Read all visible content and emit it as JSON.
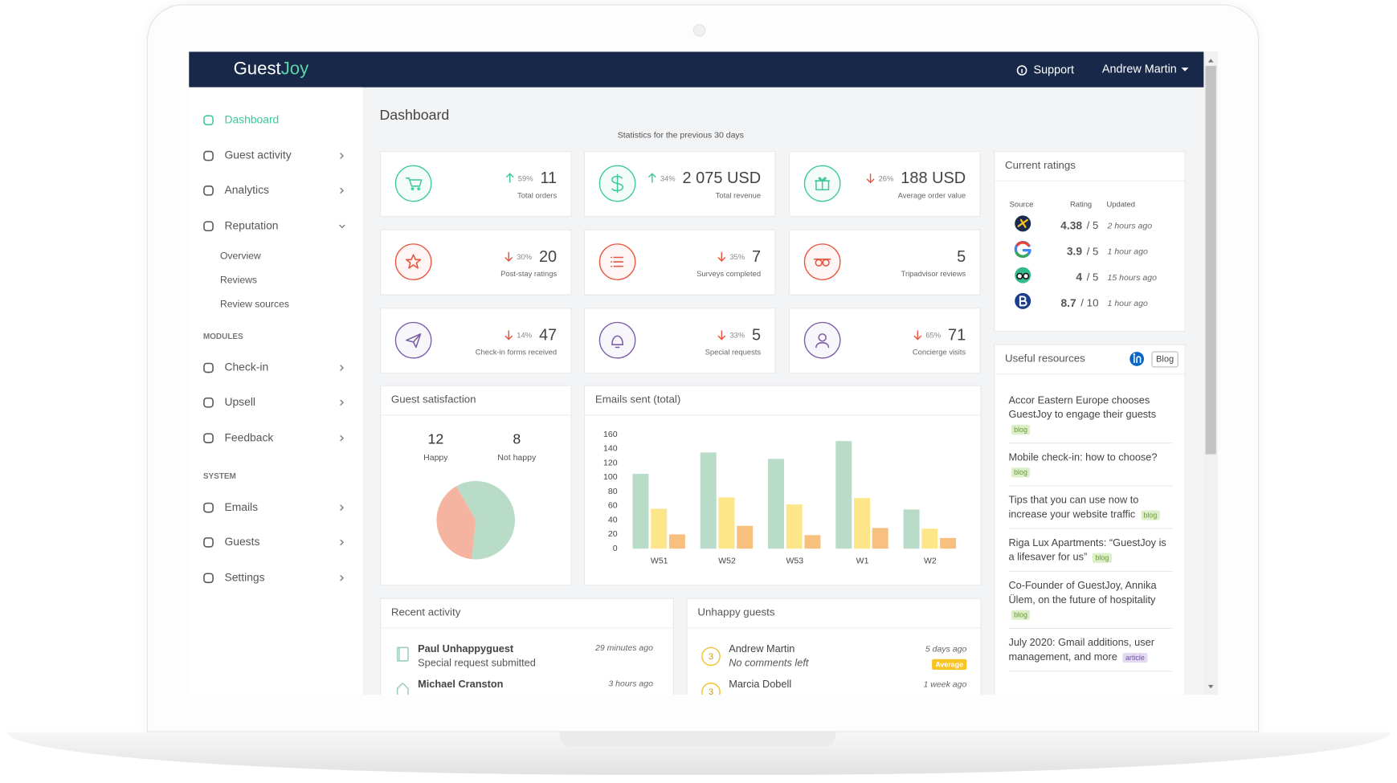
{
  "header": {
    "brand": [
      "Guest",
      "Joy"
    ],
    "support": "Support",
    "user": "Andrew Martin"
  },
  "sidebar": {
    "main": [
      {
        "label": "Dashboard",
        "active": true
      },
      {
        "label": "Guest activity"
      },
      {
        "label": "Analytics"
      },
      {
        "label": "Reputation",
        "expanded": true
      }
    ],
    "reputation_items": [
      "Overview",
      "Reviews",
      "Review sources"
    ],
    "sections": [
      {
        "heading": "MODULES",
        "items": [
          "Check-in",
          "Upsell",
          "Feedback"
        ]
      },
      {
        "heading": "SYSTEM",
        "items": [
          "Emails",
          "Guests",
          "Settings"
        ]
      }
    ]
  },
  "page": {
    "title": "Dashboard",
    "subtitle": "Statistics for the previous 30 days"
  },
  "stats": [
    {
      "change": "59%",
      "direction": "up",
      "value": 11,
      "label": "Total orders",
      "color": "#3ec99a"
    },
    {
      "change": "34%",
      "direction": "up",
      "value": "2 075 USD",
      "label": "Total revenue",
      "color": "#3ec99a"
    },
    {
      "change": "26%",
      "direction": "down",
      "value": "188 USD",
      "label": "Average order value",
      "color": "#3ec99a"
    },
    {
      "change": "30%",
      "direction": "down",
      "value": 20,
      "label": "Post-stay ratings",
      "color": "#e8553f"
    },
    {
      "change": "35%",
      "direction": "down",
      "value": 7,
      "label": "Surveys completed",
      "color": "#e8553f"
    },
    {
      "value": 5,
      "label": "Tripadvisor reviews",
      "color": "#e8553f"
    },
    {
      "change": "14%",
      "direction": "down",
      "value": 47,
      "label": "Check-in forms received",
      "color": "#7b5ea7"
    },
    {
      "change": "33%",
      "direction": "down",
      "value": 5,
      "label": "Special requests",
      "color": "#7b5ea7"
    },
    {
      "change": "65%",
      "direction": "down",
      "value": 71,
      "label": "Concierge visits",
      "color": "#7b5ea7"
    }
  ],
  "ratings": {
    "title": "Current ratings",
    "columns": [
      "Source",
      "Rating",
      "Updated"
    ],
    "rows": [
      {
        "score": 4.38,
        "scale": "/ 5",
        "updated": "2 hours ago"
      },
      {
        "score": 3.9,
        "scale": "/ 5",
        "updated": "1 hour ago"
      },
      {
        "score": 4,
        "scale": "/ 5",
        "updated": "15 hours ago"
      },
      {
        "score": 8.7,
        "scale": "/ 10",
        "updated": "1 hour ago"
      }
    ]
  },
  "resources": {
    "title": "Useful resources",
    "button": "Blog",
    "items": [
      {
        "text": "Accor Eastern Europe chooses GuestJoy to engage their guests",
        "tag": "blog"
      },
      {
        "text": "Mobile check-in: how to choose?",
        "tag": "blog"
      },
      {
        "text": "Tips that you can use now to increase your website traffic",
        "tag": "blog"
      },
      {
        "text": "Riga Lux Apartments: “GuestJoy is a lifesaver for us”",
        "tag": "blog"
      },
      {
        "text": "Co-Founder of GuestJoy, Annika Ülem, on the future of hospitality",
        "tag": "blog"
      },
      {
        "text": "July 2020: Gmail additions, user management, and more",
        "tag": "article"
      }
    ]
  },
  "satisfaction": {
    "title": "Guest satisfaction",
    "happy": {
      "value": 12,
      "label": "Happy",
      "color": "#b9dcc8"
    },
    "not_happy": {
      "value": 8,
      "label": "Not happy",
      "color": "#f5b4a0"
    }
  },
  "emails": {
    "title": "Emails sent (total)",
    "categories": [
      "W51",
      "W52",
      "W53",
      "W1",
      "W2"
    ],
    "series": [
      {
        "color": "#b9dcc8",
        "values": [
          105,
          135,
          126,
          151,
          55
        ]
      },
      {
        "color": "#fde58a",
        "values": [
          56,
          72,
          62,
          71,
          28
        ]
      },
      {
        "color": "#f8c07f",
        "values": [
          20,
          32,
          19,
          29,
          15
        ]
      }
    ],
    "ylim": [
      0,
      160
    ],
    "yticks": [
      0,
      20,
      40,
      60,
      80,
      100,
      120,
      140,
      160
    ]
  },
  "activity": {
    "title": "Recent activity",
    "items": [
      {
        "name": "Paul Unhappyguest",
        "detail": "Special request submitted",
        "time": "29 minutes ago"
      },
      {
        "name": "Michael Cranston",
        "time": "3 hours ago"
      }
    ]
  },
  "unhappy": {
    "title": "Unhappy guests",
    "items": [
      {
        "score": 3,
        "name": "Andrew Martin",
        "detail": "No comments left",
        "time": "5 days ago",
        "badge": "Average"
      },
      {
        "score": 3,
        "name": "Marcia Dobell",
        "time": "1 week ago"
      }
    ]
  }
}
